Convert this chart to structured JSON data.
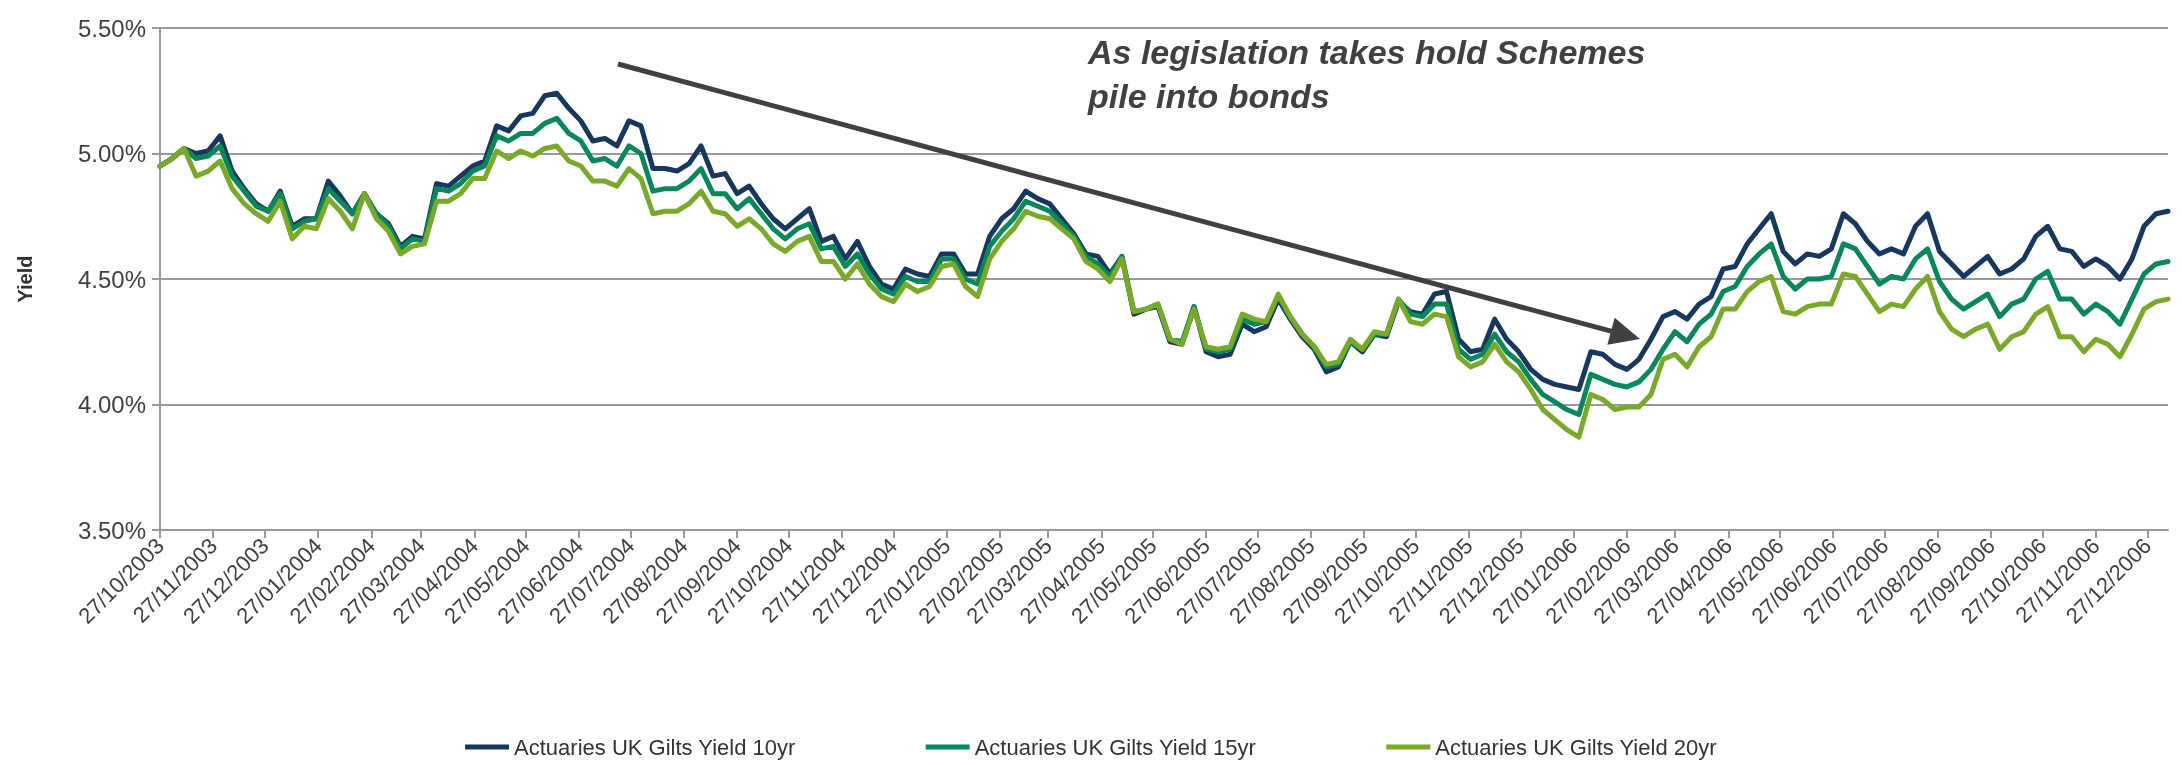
{
  "chart_data": {
    "type": "line",
    "ylabel": "Yield",
    "annotations": [
      "As legislation takes hold Schemes pile into bonds"
    ],
    "x": [
      "2003-10-27",
      "2003-11-03",
      "2003-11-10",
      "2003-11-17",
      "2003-11-24",
      "2003-12-01",
      "2003-12-08",
      "2003-12-15",
      "2003-12-22",
      "2003-12-29",
      "2004-01-05",
      "2004-01-12",
      "2004-01-19",
      "2004-01-26",
      "2004-02-02",
      "2004-02-09",
      "2004-02-16",
      "2004-02-23",
      "2004-03-01",
      "2004-03-08",
      "2004-03-15",
      "2004-03-22",
      "2004-03-29",
      "2004-04-05",
      "2004-04-12",
      "2004-04-19",
      "2004-04-26",
      "2004-05-03",
      "2004-05-10",
      "2004-05-17",
      "2004-05-24",
      "2004-05-31",
      "2004-06-07",
      "2004-06-14",
      "2004-06-21",
      "2004-06-28",
      "2004-07-05",
      "2004-07-12",
      "2004-07-19",
      "2004-07-26",
      "2004-08-02",
      "2004-08-09",
      "2004-08-16",
      "2004-08-23",
      "2004-08-30",
      "2004-09-06",
      "2004-09-13",
      "2004-09-20",
      "2004-09-27",
      "2004-10-04",
      "2004-10-11",
      "2004-10-18",
      "2004-10-25",
      "2004-11-01",
      "2004-11-08",
      "2004-11-15",
      "2004-11-22",
      "2004-11-29",
      "2004-12-06",
      "2004-12-13",
      "2004-12-20",
      "2004-12-27",
      "2005-01-03",
      "2005-01-10",
      "2005-01-17",
      "2005-01-24",
      "2005-01-31",
      "2005-02-07",
      "2005-02-14",
      "2005-02-21",
      "2005-02-28",
      "2005-03-07",
      "2005-03-14",
      "2005-03-21",
      "2005-03-28",
      "2005-04-04",
      "2005-04-11",
      "2005-04-18",
      "2005-04-25",
      "2005-05-02",
      "2005-05-09",
      "2005-05-16",
      "2005-05-23",
      "2005-05-30",
      "2005-06-06",
      "2005-06-13",
      "2005-06-20",
      "2005-06-27",
      "2005-07-04",
      "2005-07-11",
      "2005-07-18",
      "2005-07-25",
      "2005-08-01",
      "2005-08-08",
      "2005-08-15",
      "2005-08-22",
      "2005-08-29",
      "2005-09-05",
      "2005-09-12",
      "2005-09-19",
      "2005-09-26",
      "2005-10-03",
      "2005-10-10",
      "2005-10-17",
      "2005-10-24",
      "2005-10-31",
      "2005-11-07",
      "2005-11-14",
      "2005-11-21",
      "2005-11-28",
      "2005-12-05",
      "2005-12-12",
      "2005-12-19",
      "2005-12-26",
      "2006-01-02",
      "2006-01-09",
      "2006-01-16",
      "2006-01-23",
      "2006-01-30",
      "2006-02-06",
      "2006-02-13",
      "2006-02-20",
      "2006-02-27",
      "2006-03-06",
      "2006-03-13",
      "2006-03-20",
      "2006-03-27",
      "2006-04-03",
      "2006-04-10",
      "2006-04-17",
      "2006-04-24",
      "2006-05-01",
      "2006-05-08",
      "2006-05-15",
      "2006-05-22",
      "2006-05-29",
      "2006-06-05",
      "2006-06-12",
      "2006-06-19",
      "2006-06-26",
      "2006-07-03",
      "2006-07-10",
      "2006-07-17",
      "2006-07-24",
      "2006-07-31",
      "2006-08-07",
      "2006-08-14",
      "2006-08-21",
      "2006-08-28",
      "2006-09-04",
      "2006-09-11",
      "2006-09-18",
      "2006-09-25",
      "2006-10-02",
      "2006-10-09",
      "2006-10-16",
      "2006-10-23",
      "2006-10-30",
      "2006-11-06",
      "2006-11-13",
      "2006-11-20",
      "2006-11-27",
      "2006-12-04",
      "2006-12-11",
      "2006-12-18",
      "2006-12-25",
      "2007-01-01",
      "2007-01-08"
    ],
    "series": [
      {
        "name": "Actuaries UK Gilts Yield 10yr",
        "color": "#17375e",
        "values": [
          4.95,
          4.98,
          5.02,
          5.0,
          5.01,
          5.07,
          4.93,
          4.86,
          4.8,
          4.77,
          4.85,
          4.71,
          4.74,
          4.74,
          4.89,
          4.83,
          4.76,
          4.84,
          4.76,
          4.72,
          4.63,
          4.67,
          4.66,
          4.88,
          4.87,
          4.91,
          4.95,
          4.97,
          5.11,
          5.09,
          5.15,
          5.16,
          5.23,
          5.24,
          5.18,
          5.13,
          5.05,
          5.06,
          5.03,
          5.13,
          5.11,
          4.94,
          4.94,
          4.93,
          4.96,
          5.03,
          4.91,
          4.92,
          4.84,
          4.87,
          4.8,
          4.74,
          4.7,
          4.74,
          4.78,
          4.65,
          4.67,
          4.58,
          4.65,
          4.55,
          4.48,
          4.46,
          4.54,
          4.52,
          4.51,
          4.6,
          4.6,
          4.52,
          4.52,
          4.67,
          4.74,
          4.78,
          4.85,
          4.82,
          4.8,
          4.74,
          4.68,
          4.6,
          4.59,
          4.52,
          4.59,
          4.36,
          4.38,
          4.39,
          4.25,
          4.24,
          4.39,
          4.21,
          4.19,
          4.2,
          4.32,
          4.29,
          4.31,
          4.42,
          4.34,
          4.27,
          4.22,
          4.13,
          4.15,
          4.25,
          4.21,
          4.28,
          4.27,
          4.41,
          4.37,
          4.36,
          4.44,
          4.45,
          4.26,
          4.21,
          4.22,
          4.34,
          4.26,
          4.21,
          4.14,
          4.1,
          4.08,
          4.07,
          4.06,
          4.21,
          4.2,
          4.16,
          4.14,
          4.18,
          4.26,
          4.35,
          4.37,
          4.34,
          4.4,
          4.43,
          4.54,
          4.55,
          4.64,
          4.7,
          4.76,
          4.61,
          4.56,
          4.6,
          4.59,
          4.62,
          4.76,
          4.72,
          4.65,
          4.6,
          4.62,
          4.6,
          4.71,
          4.76,
          4.61,
          4.56,
          4.51,
          4.55,
          4.59,
          4.52,
          4.54,
          4.58,
          4.67,
          4.71,
          4.62,
          4.61,
          4.55,
          4.58,
          4.55,
          4.5,
          4.58,
          4.71,
          4.76,
          4.77
        ]
      },
      {
        "name": "Actuaries UK Gilts Yield 15yr",
        "color": "#08875a",
        "values": [
          4.95,
          4.98,
          5.02,
          4.98,
          4.99,
          5.03,
          4.91,
          4.85,
          4.79,
          4.77,
          4.84,
          4.7,
          4.73,
          4.74,
          4.86,
          4.81,
          4.76,
          4.84,
          4.76,
          4.71,
          4.62,
          4.66,
          4.65,
          4.86,
          4.85,
          4.88,
          4.93,
          4.95,
          5.07,
          5.05,
          5.08,
          5.08,
          5.12,
          5.14,
          5.08,
          5.05,
          4.97,
          4.98,
          4.95,
          5.03,
          5.0,
          4.85,
          4.86,
          4.86,
          4.89,
          4.94,
          4.84,
          4.84,
          4.78,
          4.82,
          4.76,
          4.7,
          4.66,
          4.7,
          4.72,
          4.62,
          4.63,
          4.55,
          4.6,
          4.52,
          4.46,
          4.44,
          4.51,
          4.49,
          4.49,
          4.58,
          4.58,
          4.5,
          4.48,
          4.63,
          4.69,
          4.74,
          4.81,
          4.79,
          4.77,
          4.72,
          4.67,
          4.59,
          4.56,
          4.51,
          4.59,
          4.37,
          4.38,
          4.4,
          4.26,
          4.25,
          4.39,
          4.22,
          4.21,
          4.22,
          4.34,
          4.32,
          4.33,
          4.43,
          4.35,
          4.28,
          4.23,
          4.15,
          4.16,
          4.25,
          4.22,
          4.28,
          4.28,
          4.42,
          4.36,
          4.35,
          4.4,
          4.4,
          4.22,
          4.18,
          4.2,
          4.28,
          4.21,
          4.17,
          4.1,
          4.04,
          4.01,
          3.98,
          3.96,
          4.12,
          4.1,
          4.08,
          4.07,
          4.09,
          4.14,
          4.22,
          4.29,
          4.25,
          4.32,
          4.36,
          4.45,
          4.47,
          4.55,
          4.6,
          4.64,
          4.51,
          4.46,
          4.5,
          4.5,
          4.51,
          4.64,
          4.62,
          4.55,
          4.48,
          4.51,
          4.5,
          4.58,
          4.62,
          4.49,
          4.42,
          4.38,
          4.41,
          4.44,
          4.35,
          4.4,
          4.42,
          4.5,
          4.53,
          4.42,
          4.42,
          4.36,
          4.4,
          4.37,
          4.32,
          4.42,
          4.52,
          4.56,
          4.57
        ]
      },
      {
        "name": "Actuaries UK Gilts Yield 20yr",
        "color": "#7aa829",
        "values": [
          4.95,
          4.98,
          5.02,
          4.91,
          4.93,
          4.97,
          4.86,
          4.8,
          4.76,
          4.73,
          4.81,
          4.66,
          4.71,
          4.7,
          4.82,
          4.77,
          4.7,
          4.84,
          4.74,
          4.69,
          4.6,
          4.63,
          4.64,
          4.81,
          4.81,
          4.84,
          4.9,
          4.9,
          5.01,
          4.98,
          5.01,
          4.99,
          5.02,
          5.03,
          4.97,
          4.95,
          4.89,
          4.89,
          4.87,
          4.94,
          4.9,
          4.76,
          4.77,
          4.77,
          4.8,
          4.85,
          4.77,
          4.76,
          4.71,
          4.74,
          4.7,
          4.64,
          4.61,
          4.65,
          4.67,
          4.57,
          4.57,
          4.5,
          4.56,
          4.48,
          4.43,
          4.41,
          4.48,
          4.45,
          4.47,
          4.55,
          4.56,
          4.47,
          4.43,
          4.58,
          4.65,
          4.7,
          4.77,
          4.75,
          4.74,
          4.7,
          4.66,
          4.57,
          4.54,
          4.49,
          4.58,
          4.37,
          4.38,
          4.4,
          4.26,
          4.24,
          4.38,
          4.23,
          4.22,
          4.23,
          4.36,
          4.34,
          4.33,
          4.44,
          4.35,
          4.28,
          4.23,
          4.16,
          4.17,
          4.26,
          4.22,
          4.29,
          4.28,
          4.42,
          4.33,
          4.32,
          4.36,
          4.35,
          4.19,
          4.15,
          4.17,
          4.24,
          4.17,
          4.13,
          4.06,
          3.98,
          3.94,
          3.9,
          3.87,
          4.04,
          4.02,
          3.98,
          3.99,
          3.99,
          4.04,
          4.18,
          4.2,
          4.15,
          4.23,
          4.27,
          4.38,
          4.38,
          4.45,
          4.49,
          4.51,
          4.37,
          4.36,
          4.39,
          4.4,
          4.4,
          4.52,
          4.51,
          4.44,
          4.37,
          4.4,
          4.39,
          4.46,
          4.51,
          4.37,
          4.3,
          4.27,
          4.3,
          4.32,
          4.22,
          4.27,
          4.29,
          4.36,
          4.39,
          4.27,
          4.27,
          4.21,
          4.26,
          4.24,
          4.19,
          4.28,
          4.38,
          4.41,
          4.42
        ]
      }
    ],
    "xlim": [
      "2003-10-27",
      "2007-01-08"
    ],
    "xticks": [
      {
        "value": "2003-10-27",
        "label": "27/10/2003"
      },
      {
        "value": "2003-11-27",
        "label": "27/11/2003"
      },
      {
        "value": "2003-12-27",
        "label": "27/12/2003"
      },
      {
        "value": "2004-01-27",
        "label": "27/01/2004"
      },
      {
        "value": "2004-02-27",
        "label": "27/02/2004"
      },
      {
        "value": "2004-03-27",
        "label": "27/03/2004"
      },
      {
        "value": "2004-04-27",
        "label": "27/04/2004"
      },
      {
        "value": "2004-05-27",
        "label": "27/05/2004"
      },
      {
        "value": "2004-06-27",
        "label": "27/06/2004"
      },
      {
        "value": "2004-07-27",
        "label": "27/07/2004"
      },
      {
        "value": "2004-08-27",
        "label": "27/08/2004"
      },
      {
        "value": "2004-09-27",
        "label": "27/09/2004"
      },
      {
        "value": "2004-10-27",
        "label": "27/10/2004"
      },
      {
        "value": "2004-11-27",
        "label": "27/11/2004"
      },
      {
        "value": "2004-12-27",
        "label": "27/12/2004"
      },
      {
        "value": "2005-01-27",
        "label": "27/01/2005"
      },
      {
        "value": "2005-02-27",
        "label": "27/02/2005"
      },
      {
        "value": "2005-03-27",
        "label": "27/03/2005"
      },
      {
        "value": "2005-04-27",
        "label": "27/04/2005"
      },
      {
        "value": "2005-05-27",
        "label": "27/05/2005"
      },
      {
        "value": "2005-06-27",
        "label": "27/06/2005"
      },
      {
        "value": "2005-07-27",
        "label": "27/07/2005"
      },
      {
        "value": "2005-08-27",
        "label": "27/08/2005"
      },
      {
        "value": "2005-09-27",
        "label": "27/09/2005"
      },
      {
        "value": "2005-10-27",
        "label": "27/10/2005"
      },
      {
        "value": "2005-11-27",
        "label": "27/11/2005"
      },
      {
        "value": "2005-12-27",
        "label": "27/12/2005"
      },
      {
        "value": "2006-01-27",
        "label": "27/01/2006"
      },
      {
        "value": "2006-02-27",
        "label": "27/02/2006"
      },
      {
        "value": "2006-03-27",
        "label": "27/03/2006"
      },
      {
        "value": "2006-04-27",
        "label": "27/04/2006"
      },
      {
        "value": "2006-05-27",
        "label": "27/05/2006"
      },
      {
        "value": "2006-06-27",
        "label": "27/06/2006"
      },
      {
        "value": "2006-07-27",
        "label": "27/07/2006"
      },
      {
        "value": "2006-08-27",
        "label": "27/08/2006"
      },
      {
        "value": "2006-09-27",
        "label": "27/09/2006"
      },
      {
        "value": "2006-10-27",
        "label": "27/10/2006"
      },
      {
        "value": "2006-11-27",
        "label": "27/11/2006"
      },
      {
        "value": "2006-12-27",
        "label": "27/12/2006"
      }
    ],
    "ylim": [
      3.5,
      5.5
    ],
    "yticks": [
      {
        "value": 3.5,
        "label": "3.50%"
      },
      {
        "value": 4.0,
        "label": "4.00%"
      },
      {
        "value": 4.5,
        "label": "4.50%"
      },
      {
        "value": 5.0,
        "label": "5.00%"
      },
      {
        "value": 5.5,
        "label": "5.50%"
      }
    ],
    "grid": "y",
    "legend": "bottom",
    "marker": "none",
    "line_style": "solid"
  }
}
